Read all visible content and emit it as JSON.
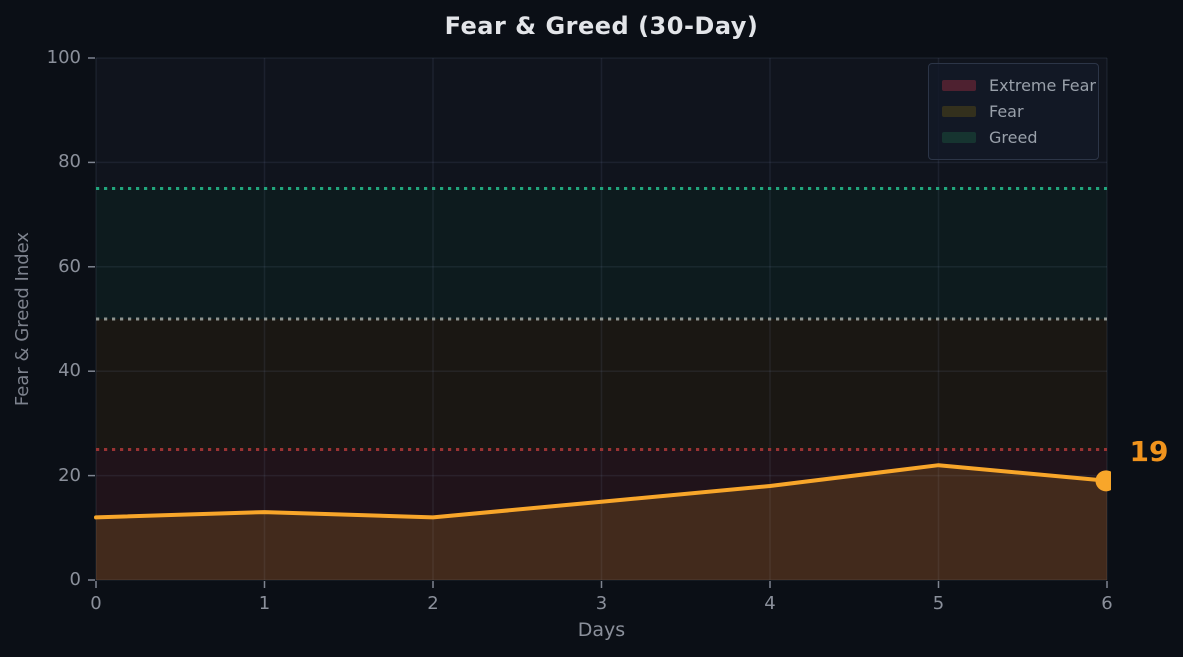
{
  "title": "Fear & Greed (30-Day)",
  "legend": [
    {
      "label": "Extreme Fear",
      "swatch_color": "#4e2130"
    },
    {
      "label": "Fear",
      "swatch_color": "#33301d"
    },
    {
      "label": "Greed",
      "swatch_color": "#163430"
    }
  ],
  "chart_data": {
    "type": "line",
    "title": "Fear & Greed (30-Day)",
    "xlabel": "Days",
    "ylabel": "Fear & Greed Index",
    "x": [
      0,
      1,
      2,
      3,
      4,
      5,
      6
    ],
    "series": [
      {
        "name": "Fear & Greed Index",
        "values": [
          12,
          13,
          12,
          15,
          18,
          22,
          19
        ]
      }
    ],
    "xlim": [
      0,
      6
    ],
    "ylim": [
      0,
      100
    ],
    "x_ticks": [
      0,
      1,
      2,
      3,
      4,
      5,
      6
    ],
    "y_ticks": [
      0,
      20,
      40,
      60,
      80,
      100
    ],
    "grid": true,
    "legend_position": "top-right",
    "bands": [
      {
        "label": "Extreme Fear",
        "from": 0,
        "to": 25,
        "fill": "#20131a",
        "threshold": {
          "value": 25,
          "color": "#993333"
        }
      },
      {
        "label": "Fear",
        "from": 25,
        "to": 50,
        "fill": "#1a1713",
        "threshold": {
          "value": 50,
          "color": "#8d938f"
        }
      },
      {
        "label": "Greed",
        "from": 50,
        "to": 75,
        "fill": "#0d1b1e",
        "threshold": {
          "value": 75,
          "color": "#21a47c"
        }
      }
    ],
    "last_point_label": "19",
    "last_point_value": 19
  },
  "colors": {
    "page_background": "#0b0f16",
    "plot_background": "#10141d",
    "gridline": "rgba(140,160,200,0.10)",
    "line": "#f8a62a",
    "area_fill": "rgba(248,166,42,0.16)",
    "annotation": "#f0931d",
    "title_text": "#e3e5e9",
    "axis_text": "#8b909b",
    "legend_text": "#99a0aa"
  }
}
